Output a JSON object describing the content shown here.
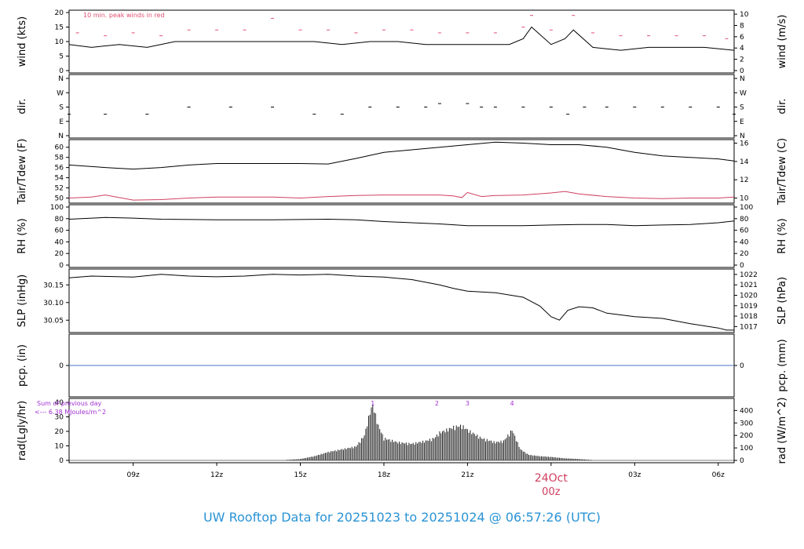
{
  "title": "UW Rooftop Data for 20251023  to  20251024 @ 06:57:26  (UTC)",
  "colors": {
    "title": "#2a93d5",
    "peak": "#e05070",
    "dew": "#d04060",
    "pcp": "#4a74c4",
    "annot": "#a030d0",
    "date": "#d04060"
  },
  "time_axis": {
    "ticks": [
      "09z",
      "12z",
      "15z",
      "18z",
      "21z",
      "03z",
      "06z"
    ],
    "tick_hours": [
      9,
      12,
      15,
      18,
      21,
      27,
      30
    ],
    "date_label": "24Oct",
    "date_sub": "00z",
    "date_hour": 24,
    "start_hour": 6.7,
    "end_hour": 30.57
  },
  "panels": {
    "wind": {
      "left_label": "wind (kts)",
      "right_label": "wind (m/s)",
      "note": "10 min. peak winds in red",
      "left_ticks": [
        "0",
        "5",
        "10",
        "15",
        "20"
      ],
      "right_ticks": [
        "0",
        "2",
        "4",
        "6",
        "8",
        "10"
      ]
    },
    "dir": {
      "left_label": "dir.",
      "right_label": "dir.",
      "ticks": [
        "N",
        "E",
        "S",
        "W",
        "N"
      ]
    },
    "temp": {
      "left_label": "Tair/Tdew (F)",
      "right_label": "Tair/Tdew (C)",
      "left_ticks": [
        "50",
        "52",
        "54",
        "56",
        "58",
        "60"
      ],
      "right_ticks": [
        "10",
        "12",
        "14",
        "16"
      ]
    },
    "rh": {
      "left_label": "RH (%)",
      "right_label": "RH (%)",
      "ticks": [
        "0",
        "20",
        "40",
        "60",
        "80",
        "100"
      ]
    },
    "slp": {
      "left_label": "SLP (inHg)",
      "right_label": "SLP (hPa)",
      "left_ticks": [
        "30.05",
        "30.10",
        "30.15"
      ],
      "right_ticks": [
        "1017",
        "1018",
        "1019",
        "1020",
        "1021",
        "1022"
      ]
    },
    "pcp": {
      "left_label": "pcp. (in)",
      "right_label": "pcp. (mm)",
      "left_ticks": [
        "0"
      ],
      "right_ticks": [
        "0"
      ]
    },
    "rad": {
      "left_label": "rad(Lgly/hr)",
      "right_label": "rad (W/m^2)",
      "left_ticks": [
        "0",
        "10",
        "20",
        "30",
        "40"
      ],
      "right_ticks": [
        "0",
        "100",
        "200",
        "300",
        "400"
      ],
      "annot_line1": "Sum of previous day",
      "annot_line2": "<--- 6.38 MJoules/m^2",
      "markers": [
        "1",
        "2",
        "3",
        "4"
      ],
      "marker_hours": [
        17.6,
        19.9,
        21.0,
        22.6
      ]
    }
  },
  "chart_data": [
    {
      "type": "line",
      "title": "",
      "ylabel": "wind (kts)",
      "ylim": [
        0,
        20
      ],
      "xlim": [
        6.7,
        30.57
      ],
      "series": [
        {
          "x": [
            6.7,
            7.5,
            8.5,
            9.5,
            10.5,
            11.5,
            12.5,
            13.5,
            14.5,
            15.5,
            16.5,
            17.5,
            18.5,
            19.5,
            20.5,
            21.5,
            22.5,
            23.0,
            23.3,
            24.0,
            24.5,
            24.8,
            25.5,
            26.5,
            27.5,
            28.5,
            29.5,
            30.57
          ],
          "values": [
            9,
            8,
            9,
            8,
            10,
            10,
            10,
            10,
            10,
            10,
            9,
            10,
            10,
            9,
            9,
            9,
            9,
            11,
            15,
            9,
            11,
            14,
            8,
            7,
            8,
            8,
            8,
            7
          ]
        },
        {
          "name": "10 min. peak winds in red",
          "x": [
            7,
            8,
            9,
            10,
            11,
            12,
            13,
            14,
            15,
            16,
            17,
            18,
            19,
            20,
            21,
            22,
            23,
            23.3,
            24,
            24.8,
            25.5,
            26.5,
            27.5,
            28.5,
            29.5,
            30.3
          ],
          "values": [
            13,
            12,
            13,
            12,
            14,
            14,
            14,
            18,
            14,
            14,
            13,
            14,
            14,
            13,
            13,
            13,
            15,
            19,
            14,
            19,
            13,
            12,
            12,
            12,
            12,
            11
          ]
        }
      ]
    },
    {
      "type": "scatter",
      "ylabel": "dir.",
      "ylim": [
        "N",
        "N"
      ],
      "x": [
        6.7,
        8,
        9.5,
        11,
        12.5,
        14,
        15.5,
        16.5,
        17.5,
        18.5,
        19.5,
        20,
        21,
        21.5,
        22,
        23,
        24,
        24.6,
        25.2,
        26,
        27,
        28,
        29,
        30,
        30.57
      ],
      "values": [
        "SE",
        "SE",
        "SE",
        "S",
        "S",
        "S",
        "SE",
        "SE",
        "S",
        "S",
        "S",
        "SSW",
        "SSW",
        "S",
        "S",
        "S",
        "S",
        "SE",
        "S",
        "S",
        "S",
        "S",
        "S",
        "S",
        "SE"
      ]
    },
    {
      "type": "line",
      "ylabel": "Tair/Tdew (F)",
      "ylim": [
        49,
        61.5
      ],
      "xlim": [
        6.7,
        30.57
      ],
      "series": [
        {
          "name": "Tair",
          "x": [
            6.7,
            8,
            9,
            10,
            11,
            12,
            13,
            14,
            15,
            16,
            17,
            18,
            19,
            20,
            21,
            22,
            23,
            24,
            25,
            26,
            27,
            28,
            29,
            30,
            30.57
          ],
          "values": [
            56.5,
            56,
            55.7,
            56,
            56.5,
            56.8,
            56.8,
            56.8,
            56.8,
            56.7,
            57.8,
            59,
            59.5,
            60,
            60.5,
            61,
            60.8,
            60.5,
            60.5,
            60,
            59,
            58.3,
            58,
            57.7,
            57.3
          ]
        },
        {
          "name": "Tdew",
          "x": [
            6.7,
            7.5,
            8,
            9,
            10,
            11,
            12,
            14,
            15,
            16,
            17,
            18,
            19,
            20,
            20.5,
            20.8,
            21,
            21.5,
            22,
            23,
            24,
            24.5,
            25,
            26,
            27,
            28,
            29,
            30,
            30.57
          ],
          "values": [
            50,
            50.2,
            50.6,
            49.6,
            49.7,
            50,
            50.2,
            50.2,
            50,
            50.3,
            50.5,
            50.6,
            50.6,
            50.6,
            50.4,
            50.1,
            51.1,
            50.3,
            50.5,
            50.6,
            51,
            51.3,
            50.8,
            50.3,
            50,
            49.9,
            50,
            50,
            50.2
          ]
        }
      ]
    },
    {
      "type": "line",
      "ylabel": "RH (%)",
      "ylim": [
        0,
        100
      ],
      "xlim": [
        6.7,
        30.57
      ],
      "x": [
        6.7,
        8,
        9,
        10,
        12,
        14,
        16,
        17,
        18,
        19,
        20,
        21,
        22,
        23,
        24,
        25,
        26,
        27,
        28,
        29,
        30,
        30.57
      ],
      "values": [
        79,
        82,
        81,
        79,
        78,
        78,
        79,
        78,
        75,
        73,
        71,
        68,
        68,
        68,
        69,
        70,
        70,
        68,
        69,
        70,
        73,
        76
      ]
    },
    {
      "type": "line",
      "ylabel": "SLP (inHg)",
      "ylim": [
        30.015,
        30.195
      ],
      "xlim": [
        6.7,
        30.57
      ],
      "x": [
        6.7,
        7.5,
        9,
        10,
        11,
        12,
        13,
        14,
        15,
        16,
        17,
        18,
        19,
        20,
        20.5,
        21,
        22,
        23,
        23.6,
        24.0,
        24.3,
        24.6,
        25,
        25.5,
        26,
        27,
        28,
        29,
        30,
        30.3,
        30.57
      ],
      "values": [
        30.17,
        30.175,
        30.172,
        30.18,
        30.175,
        30.173,
        30.175,
        30.18,
        30.178,
        30.18,
        30.175,
        30.172,
        30.165,
        30.15,
        30.14,
        30.132,
        30.128,
        30.115,
        30.09,
        30.06,
        30.05,
        30.078,
        30.088,
        30.085,
        30.07,
        30.06,
        30.055,
        30.04,
        30.028,
        30.022,
        30.022
      ]
    },
    {
      "type": "line",
      "ylabel": "pcp. (in)",
      "ylim": [
        -1,
        1
      ],
      "xlim": [
        6.7,
        30.57
      ],
      "x": [
        6.7,
        30.57
      ],
      "values": [
        0,
        0
      ]
    },
    {
      "type": "bar",
      "ylabel": "rad(Lgly/hr)",
      "ylim": [
        0,
        40
      ],
      "xlim": [
        6.7,
        30.57
      ],
      "x": [
        14.5,
        15,
        15.5,
        16,
        16.5,
        17,
        17.3,
        17.5,
        17.6,
        17.8,
        18,
        18.5,
        19,
        19.5,
        19.8,
        20,
        20.5,
        20.8,
        21,
        21.5,
        22,
        22.3,
        22.6,
        22.9,
        23.2,
        23.6,
        24,
        24.5,
        25,
        25.5
      ],
      "values": [
        0.3,
        1,
        3,
        6,
        8,
        10,
        18,
        35,
        40,
        25,
        16,
        13,
        12,
        14,
        16,
        20,
        24,
        25,
        22,
        16,
        13,
        14,
        22,
        8,
        4,
        3,
        2.5,
        1.5,
        1,
        0.2
      ]
    }
  ]
}
